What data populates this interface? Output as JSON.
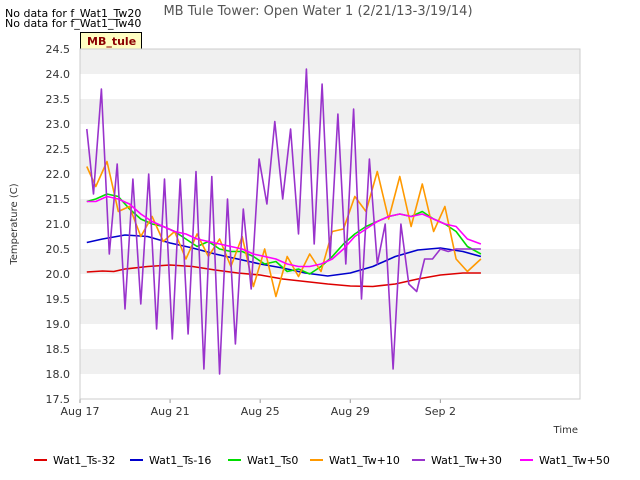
{
  "notes": {
    "line1": "No data for f_Wat1_Tw20",
    "line2": "No data for f_Wat1_Tw40"
  },
  "site_badge": "MB_tule",
  "chart_data": {
    "type": "line",
    "title": "MB Tule Tower: Open Water 1 (2/21/13-3/19/14)",
    "xlabel": "Time",
    "ylabel": "Temperature (C)",
    "x_unit": "day of August",
    "xlim": [
      17,
      39.2
    ],
    "ylim": [
      17.5,
      24.5
    ],
    "xticks": [
      {
        "value": 17,
        "label": "Aug 17"
      },
      {
        "value": 21,
        "label": "Aug 21"
      },
      {
        "value": 25,
        "label": "Aug 25"
      },
      {
        "value": 29,
        "label": "Aug 29"
      },
      {
        "value": 33,
        "label": "Sep 2"
      }
    ],
    "yticks": [
      17.5,
      18.0,
      18.5,
      19.0,
      19.5,
      20.0,
      20.5,
      21.0,
      21.5,
      22.0,
      22.5,
      23.0,
      23.5,
      24.0,
      24.5
    ],
    "ytick_labels": [
      "17.5",
      "18.0",
      "18.5",
      "19.0",
      "19.5",
      "20.0",
      "20.5",
      "21.0",
      "21.5",
      "22.0",
      "22.5",
      "23.0",
      "23.5",
      "24.0",
      "24.5"
    ],
    "grid": "horizontal bands",
    "legend_position": "bottom",
    "series": [
      {
        "name": "Wat1_Ts-32",
        "color": "#dd0000",
        "x": [
          17.3,
          18.0,
          18.5,
          19.0,
          20.0,
          21.0,
          22.0,
          23.0,
          24.0,
          25.0,
          26.0,
          27.0,
          28.0,
          29.0,
          30.0,
          31.0,
          32.0,
          33.0,
          34.0,
          34.8
        ],
        "y": [
          20.04,
          20.06,
          20.05,
          20.1,
          20.15,
          20.18,
          20.15,
          20.08,
          20.02,
          19.98,
          19.9,
          19.85,
          19.8,
          19.76,
          19.75,
          19.8,
          19.9,
          19.98,
          20.02,
          20.02
        ]
      },
      {
        "name": "Wat1_Ts-16",
        "color": "#0000cc",
        "x": [
          17.3,
          18.0,
          19.0,
          20.0,
          21.0,
          22.0,
          23.0,
          24.0,
          25.0,
          26.0,
          27.0,
          28.0,
          29.0,
          30.0,
          31.0,
          32.0,
          33.0,
          34.0,
          34.8
        ],
        "y": [
          20.63,
          20.7,
          20.78,
          20.75,
          20.62,
          20.52,
          20.4,
          20.3,
          20.2,
          20.12,
          20.02,
          19.96,
          20.02,
          20.15,
          20.35,
          20.48,
          20.52,
          20.45,
          20.35
        ]
      },
      {
        "name": "Wat1_Ts0",
        "color": "#00dd00",
        "x": [
          17.3,
          17.7,
          18.2,
          18.7,
          19.2,
          19.7,
          20.2,
          20.7,
          21.2,
          21.7,
          22.2,
          22.7,
          23.2,
          23.7,
          24.2,
          24.7,
          25.2,
          25.7,
          26.2,
          26.7,
          27.2,
          27.7,
          28.2,
          28.7,
          29.2,
          29.7,
          30.2,
          30.7,
          31.2,
          31.7,
          32.2,
          32.7,
          33.2,
          33.7,
          34.2,
          34.8
        ],
        "y": [
          21.45,
          21.5,
          21.6,
          21.55,
          21.3,
          21.1,
          21.0,
          20.95,
          20.85,
          20.7,
          20.55,
          20.65,
          20.5,
          20.45,
          20.45,
          20.35,
          20.2,
          20.25,
          20.05,
          20.1,
          20.0,
          20.15,
          20.35,
          20.6,
          20.8,
          20.95,
          21.05,
          21.15,
          21.2,
          21.15,
          21.25,
          21.1,
          21.0,
          20.85,
          20.55,
          20.4
        ]
      },
      {
        "name": "Wat1_Tw+10",
        "color": "#ff9900",
        "x": [
          17.3,
          17.7,
          18.2,
          18.7,
          19.2,
          19.7,
          20.2,
          20.7,
          21.2,
          21.7,
          22.2,
          22.7,
          23.2,
          23.7,
          24.2,
          24.7,
          25.2,
          25.7,
          26.2,
          26.7,
          27.2,
          27.7,
          28.2,
          28.7,
          29.2,
          29.7,
          30.2,
          30.7,
          31.2,
          31.7,
          32.2,
          32.7,
          33.2,
          33.7,
          34.2,
          34.8
        ],
        "y": [
          22.15,
          21.75,
          22.25,
          21.25,
          21.35,
          20.75,
          21.15,
          20.65,
          20.85,
          20.3,
          20.8,
          20.35,
          20.7,
          20.15,
          20.75,
          19.75,
          20.5,
          19.55,
          20.35,
          19.95,
          20.4,
          20.05,
          20.85,
          20.9,
          21.55,
          21.25,
          22.05,
          21.1,
          21.95,
          20.95,
          21.8,
          20.85,
          21.35,
          20.3,
          20.05,
          20.3
        ]
      },
      {
        "name": "Wat1_Tw+30",
        "color": "#9933cc",
        "x": [
          17.3,
          17.6,
          17.95,
          18.3,
          18.65,
          19.0,
          19.35,
          19.7,
          20.05,
          20.4,
          20.75,
          21.1,
          21.45,
          21.8,
          22.15,
          22.5,
          22.85,
          23.2,
          23.55,
          23.9,
          24.25,
          24.6,
          24.95,
          25.3,
          25.65,
          26.0,
          26.35,
          26.7,
          27.05,
          27.4,
          27.75,
          28.1,
          28.45,
          28.8,
          29.15,
          29.5,
          29.85,
          30.2,
          30.55,
          30.9,
          31.25,
          31.6,
          31.95,
          32.3,
          32.65,
          33.0,
          33.35,
          33.7,
          34.05,
          34.4,
          34.8
        ],
        "y": [
          22.9,
          21.6,
          23.7,
          20.4,
          22.2,
          19.3,
          21.9,
          19.4,
          22.0,
          18.9,
          21.9,
          18.7,
          21.9,
          18.8,
          22.05,
          18.1,
          21.95,
          18.0,
          21.5,
          18.6,
          21.3,
          19.7,
          22.3,
          21.4,
          23.05,
          21.5,
          22.9,
          20.8,
          24.1,
          20.6,
          23.8,
          20.3,
          23.2,
          20.2,
          23.3,
          19.5,
          22.3,
          20.2,
          21.0,
          18.1,
          21.0,
          19.8,
          19.65,
          20.3,
          20.3,
          20.5,
          20.45,
          20.5,
          20.5,
          20.5,
          20.5
        ]
      },
      {
        "name": "Wat1_Tw+50",
        "color": "#ff00ff",
        "x": [
          17.3,
          17.7,
          18.2,
          18.7,
          19.2,
          19.7,
          20.2,
          20.7,
          21.2,
          21.7,
          22.2,
          22.7,
          23.2,
          23.7,
          24.2,
          24.7,
          25.2,
          25.7,
          26.2,
          26.7,
          27.2,
          27.7,
          28.2,
          28.7,
          29.2,
          29.7,
          30.2,
          30.7,
          31.2,
          31.7,
          32.2,
          32.7,
          33.2,
          33.7,
          34.2,
          34.8
        ],
        "y": [
          21.45,
          21.45,
          21.55,
          21.5,
          21.4,
          21.2,
          21.05,
          20.95,
          20.85,
          20.8,
          20.7,
          20.65,
          20.6,
          20.55,
          20.5,
          20.4,
          20.35,
          20.3,
          20.2,
          20.15,
          20.15,
          20.2,
          20.3,
          20.5,
          20.75,
          20.9,
          21.05,
          21.15,
          21.2,
          21.15,
          21.2,
          21.1,
          21.0,
          20.95,
          20.7,
          20.6
        ]
      }
    ]
  }
}
